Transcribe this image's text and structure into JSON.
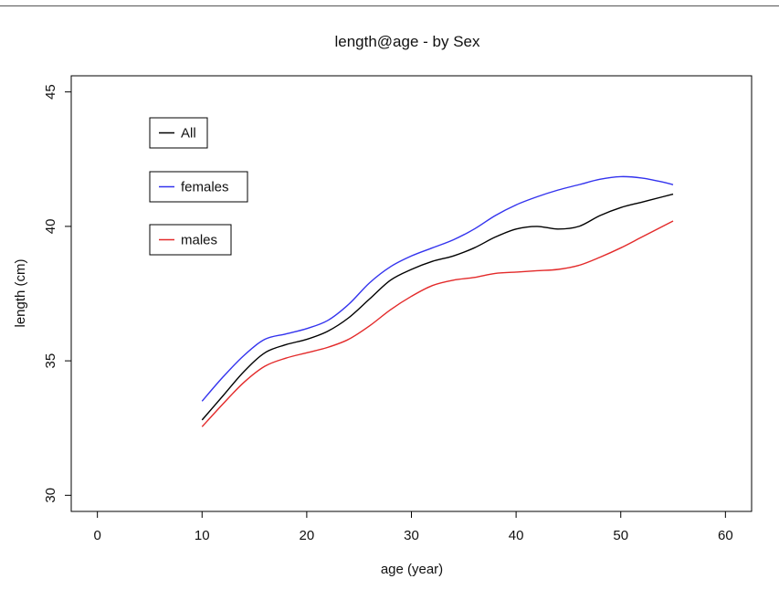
{
  "chart_data": {
    "type": "line",
    "title": "length@age - by Sex",
    "xlabel": "age (year)",
    "ylabel": "length (cm)",
    "xlim": [
      -2.5,
      62.5
    ],
    "ylim": [
      29.4,
      45.6
    ],
    "xticks": [
      0,
      10,
      20,
      30,
      40,
      50,
      60
    ],
    "yticks": [
      30,
      35,
      40,
      45
    ],
    "grid": false,
    "legend_placement": "top-left (separate boxes)",
    "x": [
      10,
      12,
      14,
      16,
      18,
      20,
      22,
      24,
      26,
      28,
      30,
      32,
      34,
      36,
      38,
      40,
      42,
      44,
      46,
      48,
      50,
      52,
      54,
      55
    ],
    "series": [
      {
        "name": "All",
        "color": "#000000",
        "values": [
          32.8,
          33.7,
          34.6,
          35.3,
          35.6,
          35.8,
          36.1,
          36.6,
          37.3,
          38.0,
          38.4,
          38.7,
          38.9,
          39.2,
          39.6,
          39.9,
          40.0,
          39.9,
          40.0,
          40.4,
          40.7,
          40.9,
          41.1,
          41.2
        ]
      },
      {
        "name": "females",
        "color": "#3333ee",
        "values": [
          33.5,
          34.4,
          35.2,
          35.8,
          36.0,
          36.2,
          36.5,
          37.1,
          37.9,
          38.5,
          38.9,
          39.2,
          39.5,
          39.9,
          40.4,
          40.8,
          41.1,
          41.35,
          41.55,
          41.75,
          41.85,
          41.8,
          41.65,
          41.55
        ]
      },
      {
        "name": "males",
        "color": "#e32a2a",
        "values": [
          32.55,
          33.4,
          34.2,
          34.8,
          35.1,
          35.3,
          35.5,
          35.8,
          36.3,
          36.9,
          37.4,
          37.8,
          38.0,
          38.1,
          38.25,
          38.3,
          38.35,
          38.4,
          38.55,
          38.85,
          39.2,
          39.6,
          40.0,
          40.2
        ]
      }
    ]
  }
}
